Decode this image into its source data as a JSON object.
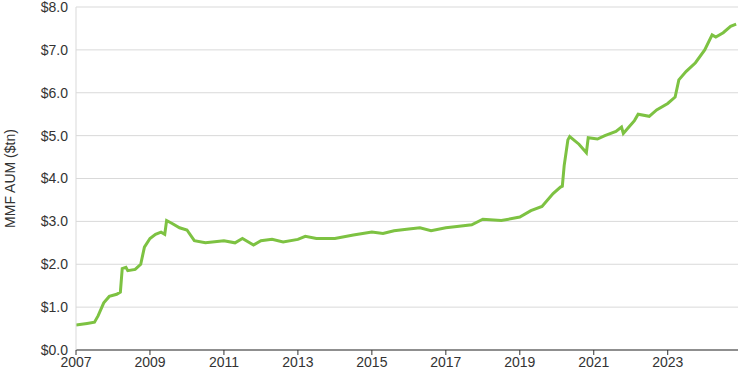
{
  "chart_data": {
    "type": "line",
    "y_label": "MMF AUM ($tn)",
    "x": [
      2007.0,
      2007.3,
      2007.5,
      2007.6,
      2007.75,
      2007.9,
      2008.1,
      2008.2,
      2008.25,
      2008.35,
      2008.4,
      2008.6,
      2008.75,
      2008.85,
      2009.0,
      2009.15,
      2009.3,
      2009.4,
      2009.45,
      2009.6,
      2009.8,
      2010.0,
      2010.2,
      2010.5,
      2011.0,
      2011.3,
      2011.5,
      2011.8,
      2012.0,
      2012.3,
      2012.6,
      2013.0,
      2013.2,
      2013.5,
      2014.0,
      2014.5,
      2015.0,
      2015.3,
      2015.6,
      2016.0,
      2016.3,
      2016.6,
      2017.0,
      2017.3,
      2017.7,
      2018.0,
      2018.5,
      2019.0,
      2019.3,
      2019.6,
      2019.9,
      2020.1,
      2020.15,
      2020.2,
      2020.3,
      2020.35,
      2020.6,
      2020.8,
      2020.85,
      2021.1,
      2021.3,
      2021.6,
      2021.75,
      2021.8,
      2021.95,
      2022.1,
      2022.2,
      2022.5,
      2022.7,
      2023.0,
      2023.2,
      2023.3,
      2023.5,
      2023.75,
      2024.0,
      2024.2,
      2024.3,
      2024.5,
      2024.7,
      2024.85
    ],
    "series": [
      {
        "name": "MMF AUM",
        "color": "#7dc242",
        "values": [
          0.58,
          0.62,
          0.65,
          0.8,
          1.1,
          1.25,
          1.3,
          1.35,
          1.9,
          1.93,
          1.85,
          1.88,
          2.0,
          2.4,
          2.6,
          2.7,
          2.75,
          2.7,
          3.02,
          2.95,
          2.85,
          2.8,
          2.55,
          2.5,
          2.55,
          2.5,
          2.6,
          2.45,
          2.55,
          2.58,
          2.52,
          2.58,
          2.65,
          2.6,
          2.6,
          2.68,
          2.75,
          2.72,
          2.78,
          2.82,
          2.85,
          2.78,
          2.85,
          2.88,
          2.92,
          3.05,
          3.02,
          3.1,
          3.25,
          3.35,
          3.65,
          3.8,
          3.82,
          4.3,
          4.9,
          4.98,
          4.8,
          4.6,
          4.95,
          4.92,
          5.0,
          5.1,
          5.2,
          5.05,
          5.2,
          5.35,
          5.5,
          5.45,
          5.6,
          5.75,
          5.9,
          6.3,
          6.5,
          6.7,
          7.0,
          7.35,
          7.3,
          7.4,
          7.55,
          7.6
        ]
      }
    ],
    "xlim": [
      2007,
      2024.9
    ],
    "xticks": [
      2007,
      2009,
      2011,
      2013,
      2015,
      2017,
      2019,
      2021,
      2023
    ],
    "ylim": [
      0,
      8
    ],
    "yticks": [
      {
        "value": 0,
        "label": "$0.0"
      },
      {
        "value": 1,
        "label": "$1.0"
      },
      {
        "value": 2,
        "label": "$2.0"
      },
      {
        "value": 3,
        "label": "$3.0"
      },
      {
        "value": 4,
        "label": "$4.0"
      },
      {
        "value": 5,
        "label": "$5.0"
      },
      {
        "value": 6,
        "label": "$6.0"
      },
      {
        "value": 7,
        "label": "$7.0"
      },
      {
        "value": 8,
        "label": "$8.0"
      }
    ],
    "grid": true
  }
}
